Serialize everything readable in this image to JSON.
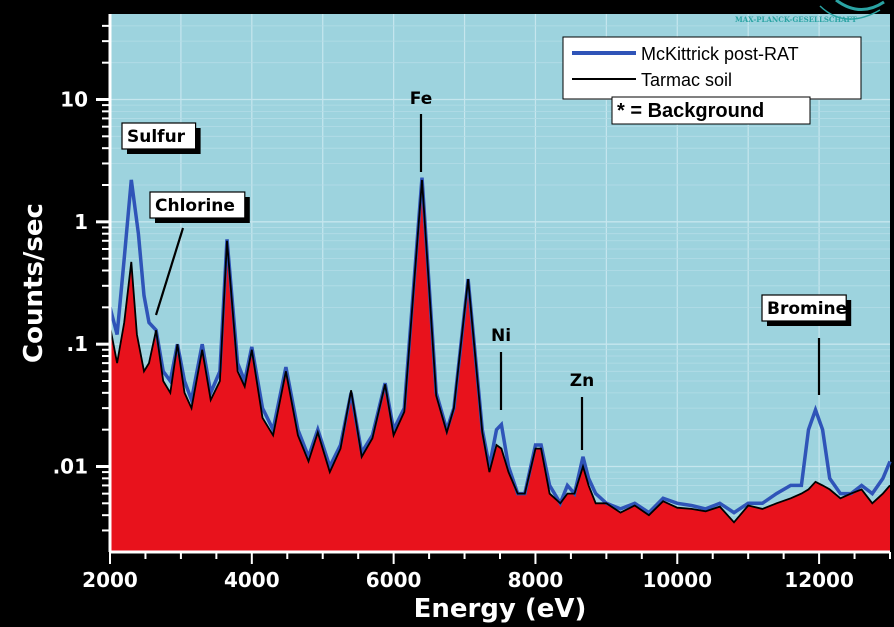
{
  "logo_text": "MAX-PLANCK-GESELLSCHAFT",
  "colors": {
    "plot_bg": "#9dd3de",
    "fill_red": "#e8121c",
    "blue": "#2f54b8",
    "black": "#000000",
    "axis_text": "#ffffff"
  },
  "chart_data": {
    "type": "line",
    "title": "",
    "xlabel": "Energy (eV)",
    "ylabel": "Counts/sec",
    "xlim": [
      2000,
      13000
    ],
    "ylim": [
      0.002,
      50
    ],
    "yscale": "log",
    "grid": true,
    "legend_position": "top-right",
    "x_ticks": [
      {
        "value": 2000,
        "label": "2000"
      },
      {
        "value": 4000,
        "label": "4000"
      },
      {
        "value": 6000,
        "label": "6000"
      },
      {
        "value": 8000,
        "label": "8000"
      },
      {
        "value": 10000,
        "label": "10000"
      },
      {
        "value": 12000,
        "label": "12000"
      }
    ],
    "y_ticks": [
      {
        "value": 10,
        "label": "10"
      },
      {
        "value": 1,
        "label": "1"
      },
      {
        "value": 0.1,
        "label": ".1"
      },
      {
        "value": 0.01,
        "label": ".01"
      }
    ],
    "legend_note": "* = Background",
    "series": [
      {
        "name": "McKittrick post-RAT",
        "color": "#2f54b8",
        "points": [
          [
            2000,
            0.2
          ],
          [
            2100,
            0.12
          ],
          [
            2200,
            0.5
          ],
          [
            2300,
            2.2
          ],
          [
            2400,
            0.8
          ],
          [
            2480,
            0.25
          ],
          [
            2550,
            0.15
          ],
          [
            2650,
            0.13
          ],
          [
            2750,
            0.06
          ],
          [
            2850,
            0.05
          ],
          [
            2950,
            0.1
          ],
          [
            3050,
            0.05
          ],
          [
            3150,
            0.035
          ],
          [
            3300,
            0.1
          ],
          [
            3420,
            0.04
          ],
          [
            3550,
            0.06
          ],
          [
            3650,
            0.72
          ],
          [
            3800,
            0.07
          ],
          [
            3900,
            0.05
          ],
          [
            4000,
            0.095
          ],
          [
            4150,
            0.03
          ],
          [
            4300,
            0.02
          ],
          [
            4480,
            0.065
          ],
          [
            4650,
            0.02
          ],
          [
            4800,
            0.012
          ],
          [
            4930,
            0.02
          ],
          [
            5100,
            0.01
          ],
          [
            5250,
            0.015
          ],
          [
            5400,
            0.04
          ],
          [
            5550,
            0.013
          ],
          [
            5700,
            0.018
          ],
          [
            5880,
            0.048
          ],
          [
            6000,
            0.02
          ],
          [
            6150,
            0.03
          ],
          [
            6400,
            2.3
          ],
          [
            6600,
            0.04
          ],
          [
            6750,
            0.02
          ],
          [
            6850,
            0.03
          ],
          [
            7050,
            0.34
          ],
          [
            7250,
            0.02
          ],
          [
            7350,
            0.01
          ],
          [
            7450,
            0.02
          ],
          [
            7520,
            0.022
          ],
          [
            7620,
            0.01
          ],
          [
            7750,
            0.006
          ],
          [
            7850,
            0.006
          ],
          [
            8000,
            0.015
          ],
          [
            8080,
            0.015
          ],
          [
            8200,
            0.007
          ],
          [
            8350,
            0.005
          ],
          [
            8450,
            0.007
          ],
          [
            8550,
            0.006
          ],
          [
            8670,
            0.012
          ],
          [
            8750,
            0.008
          ],
          [
            8850,
            0.006
          ],
          [
            9000,
            0.005
          ],
          [
            9200,
            0.0045
          ],
          [
            9400,
            0.005
          ],
          [
            9600,
            0.0042
          ],
          [
            9800,
            0.0055
          ],
          [
            10000,
            0.005
          ],
          [
            10200,
            0.0048
          ],
          [
            10400,
            0.0045
          ],
          [
            10600,
            0.005
          ],
          [
            10800,
            0.0042
          ],
          [
            11000,
            0.005
          ],
          [
            11200,
            0.005
          ],
          [
            11400,
            0.006
          ],
          [
            11600,
            0.007
          ],
          [
            11750,
            0.007
          ],
          [
            11850,
            0.02
          ],
          [
            11950,
            0.029
          ],
          [
            12050,
            0.02
          ],
          [
            12150,
            0.008
          ],
          [
            12300,
            0.006
          ],
          [
            12450,
            0.006
          ],
          [
            12600,
            0.007
          ],
          [
            12750,
            0.006
          ],
          [
            12900,
            0.008
          ],
          [
            13000,
            0.011
          ]
        ]
      },
      {
        "name": "Tarmac soil",
        "color": "#000000",
        "points": [
          [
            2000,
            0.14
          ],
          [
            2100,
            0.07
          ],
          [
            2200,
            0.15
          ],
          [
            2300,
            0.47
          ],
          [
            2380,
            0.12
          ],
          [
            2480,
            0.06
          ],
          [
            2550,
            0.07
          ],
          [
            2650,
            0.13
          ],
          [
            2750,
            0.05
          ],
          [
            2850,
            0.04
          ],
          [
            2950,
            0.1
          ],
          [
            3050,
            0.04
          ],
          [
            3150,
            0.03
          ],
          [
            3300,
            0.09
          ],
          [
            3420,
            0.035
          ],
          [
            3550,
            0.05
          ],
          [
            3650,
            0.7
          ],
          [
            3800,
            0.06
          ],
          [
            3900,
            0.045
          ],
          [
            4000,
            0.09
          ],
          [
            4150,
            0.025
          ],
          [
            4300,
            0.018
          ],
          [
            4480,
            0.06
          ],
          [
            4650,
            0.018
          ],
          [
            4800,
            0.011
          ],
          [
            4930,
            0.019
          ],
          [
            5100,
            0.009
          ],
          [
            5250,
            0.014
          ],
          [
            5400,
            0.042
          ],
          [
            5550,
            0.012
          ],
          [
            5700,
            0.017
          ],
          [
            5880,
            0.047
          ],
          [
            6000,
            0.018
          ],
          [
            6150,
            0.028
          ],
          [
            6400,
            2.2
          ],
          [
            6600,
            0.038
          ],
          [
            6750,
            0.019
          ],
          [
            6850,
            0.03
          ],
          [
            7050,
            0.34
          ],
          [
            7250,
            0.019
          ],
          [
            7350,
            0.009
          ],
          [
            7450,
            0.015
          ],
          [
            7520,
            0.014
          ],
          [
            7620,
            0.009
          ],
          [
            7750,
            0.006
          ],
          [
            7850,
            0.006
          ],
          [
            8000,
            0.014
          ],
          [
            8080,
            0.014
          ],
          [
            8200,
            0.006
          ],
          [
            8350,
            0.005
          ],
          [
            8450,
            0.006
          ],
          [
            8550,
            0.006
          ],
          [
            8670,
            0.01
          ],
          [
            8750,
            0.007
          ],
          [
            8850,
            0.005
          ],
          [
            9000,
            0.005
          ],
          [
            9200,
            0.0042
          ],
          [
            9400,
            0.0048
          ],
          [
            9600,
            0.004
          ],
          [
            9800,
            0.0052
          ],
          [
            10000,
            0.0046
          ],
          [
            10200,
            0.0045
          ],
          [
            10400,
            0.0043
          ],
          [
            10600,
            0.0047
          ],
          [
            10800,
            0.0035
          ],
          [
            11000,
            0.0048
          ],
          [
            11200,
            0.0045
          ],
          [
            11400,
            0.005
          ],
          [
            11600,
            0.0055
          ],
          [
            11750,
            0.006
          ],
          [
            11850,
            0.0065
          ],
          [
            11950,
            0.0075
          ],
          [
            12050,
            0.007
          ],
          [
            12150,
            0.0065
          ],
          [
            12300,
            0.0055
          ],
          [
            12450,
            0.006
          ],
          [
            12600,
            0.0065
          ],
          [
            12750,
            0.005
          ],
          [
            12900,
            0.006
          ],
          [
            13000,
            0.007
          ]
        ]
      }
    ],
    "annotations": [
      {
        "text": "Sulfur",
        "boxed": true,
        "x": 2300,
        "y": 2.2
      },
      {
        "text": "Chlorine",
        "boxed": true,
        "x": 2650,
        "y": 0.15
      },
      {
        "text": "Fe",
        "boxed": false,
        "x": 6400,
        "y": 2.3
      },
      {
        "text": "Ni",
        "boxed": false,
        "x": 7520,
        "y": 0.022
      },
      {
        "text": "Zn",
        "boxed": false,
        "x": 8670,
        "y": 0.012
      },
      {
        "text": "Bromine",
        "boxed": true,
        "x": 11950,
        "y": 0.029
      }
    ]
  }
}
